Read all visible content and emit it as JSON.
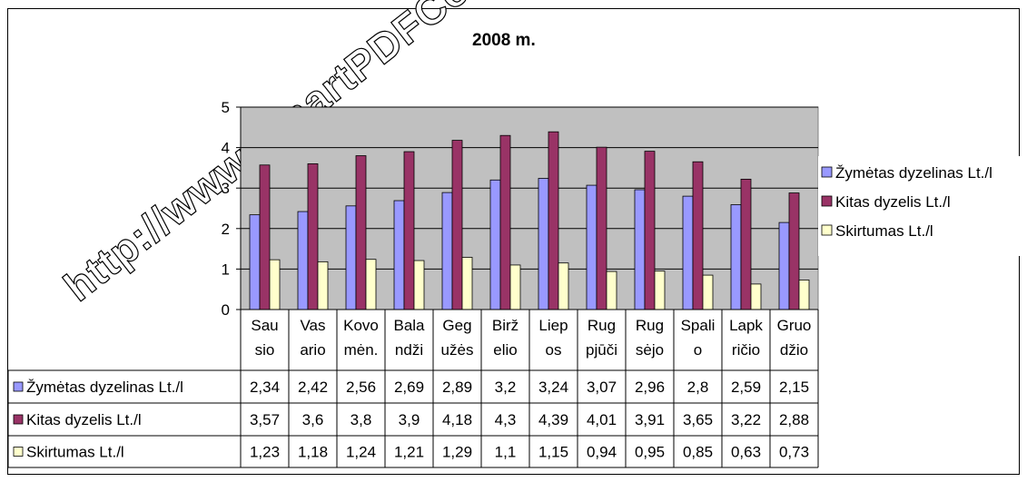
{
  "chart_data": {
    "type": "bar",
    "title": "2008 m.",
    "categories": [
      [
        "Sau",
        "sio"
      ],
      [
        "Vas",
        "ario"
      ],
      [
        "Kovo",
        "mėn."
      ],
      [
        "Bala",
        "ndži"
      ],
      [
        "Geg",
        "užės"
      ],
      [
        "Birž",
        "elio"
      ],
      [
        "Liep",
        "os"
      ],
      [
        "Rug",
        "pjūči"
      ],
      [
        "Rug",
        "sėjo"
      ],
      [
        "Spali",
        "o"
      ],
      [
        "Lapk",
        "ričio"
      ],
      [
        "Gruo",
        "džio"
      ]
    ],
    "series": [
      {
        "name": "Žymėtas dyzelinas Lt./l",
        "color": "#9999ff",
        "values": [
          2.34,
          2.42,
          2.56,
          2.69,
          2.89,
          3.2,
          3.24,
          3.07,
          2.96,
          2.8,
          2.59,
          2.15
        ],
        "labels": [
          "2,34",
          "2,42",
          "2,56",
          "2,69",
          "2,89",
          "3,2",
          "3,24",
          "3,07",
          "2,96",
          "2,8",
          "2,59",
          "2,15"
        ]
      },
      {
        "name": "Kitas dyzelis Lt./l",
        "color": "#993366",
        "values": [
          3.57,
          3.6,
          3.8,
          3.9,
          4.18,
          4.3,
          4.39,
          4.01,
          3.91,
          3.65,
          3.22,
          2.88
        ],
        "labels": [
          "3,57",
          "3,6",
          "3,8",
          "3,9",
          "4,18",
          "4,3",
          "4,39",
          "4,01",
          "3,91",
          "3,65",
          "3,22",
          "2,88"
        ]
      },
      {
        "name": "Skirtumas Lt./l",
        "color": "#ffffcc",
        "values": [
          1.23,
          1.18,
          1.24,
          1.21,
          1.29,
          1.1,
          1.15,
          0.94,
          0.95,
          0.85,
          0.63,
          0.73
        ],
        "labels": [
          "1,23",
          "1,18",
          "1,24",
          "1,21",
          "1,29",
          "1,1",
          "1,15",
          "0,94",
          "0,95",
          "0,85",
          "0,63",
          "0,73"
        ]
      }
    ],
    "yticks": [
      "0",
      "1",
      "2",
      "3",
      "4",
      "5"
    ],
    "ylim": [
      0,
      5
    ],
    "grid": true,
    "legend": "right",
    "plot_background": "#c0c0c0"
  },
  "watermark": "http://www.SmartPDFConverter.com"
}
